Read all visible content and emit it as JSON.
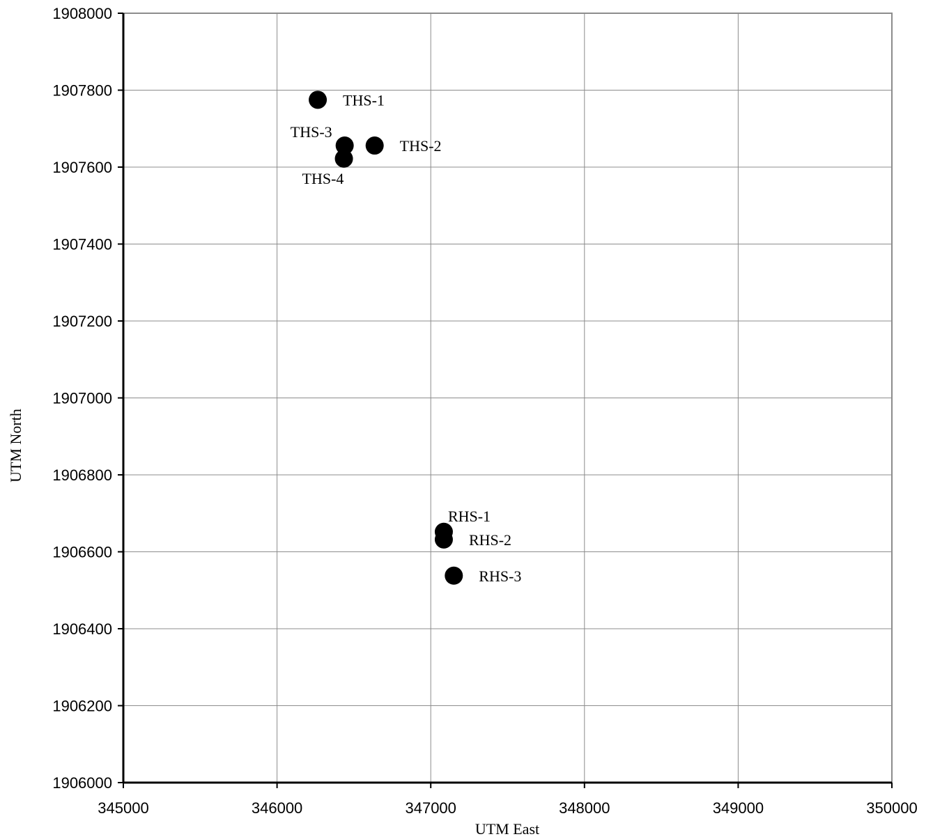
{
  "chart_data": {
    "type": "scatter",
    "title": "",
    "xlabel": "UTM East",
    "ylabel": "UTM  North",
    "xlim": [
      345000,
      350000
    ],
    "ylim": [
      1906000,
      1908000
    ],
    "xticks": [
      345000,
      346000,
      347000,
      348000,
      349000,
      350000
    ],
    "yticks": [
      1906000,
      1906200,
      1906400,
      1906600,
      1906800,
      1907000,
      1907200,
      1907400,
      1907600,
      1907800,
      1908000
    ],
    "xtick_labels": [
      "345000",
      "346000",
      "347000",
      "348000",
      "349000",
      "350000"
    ],
    "ytick_labels": [
      "1906000",
      "1906200",
      "1906400",
      "1906600",
      "1906800",
      "1907000",
      "1907200",
      "1907400",
      "1907600",
      "1907800",
      "1908000"
    ],
    "grid": true,
    "legend": "none",
    "marker_color": "#000000",
    "points": [
      {
        "label": "THS-1",
        "x": 346265,
        "y": 1907775,
        "label_pos": "right"
      },
      {
        "label": "THS-2",
        "x": 346635,
        "y": 1907656,
        "label_pos": "right"
      },
      {
        "label": "THS-3",
        "x": 346440,
        "y": 1907656,
        "label_pos": "upper-left"
      },
      {
        "label": "THS-4",
        "x": 346435,
        "y": 1907622,
        "label_pos": "below"
      },
      {
        "label": "RHS-1",
        "x": 347085,
        "y": 1906652,
        "label_pos": "above"
      },
      {
        "label": "RHS-2",
        "x": 347085,
        "y": 1906632,
        "label_pos": "right"
      },
      {
        "label": "RHS-3",
        "x": 347150,
        "y": 1906538,
        "label_pos": "right"
      }
    ]
  }
}
